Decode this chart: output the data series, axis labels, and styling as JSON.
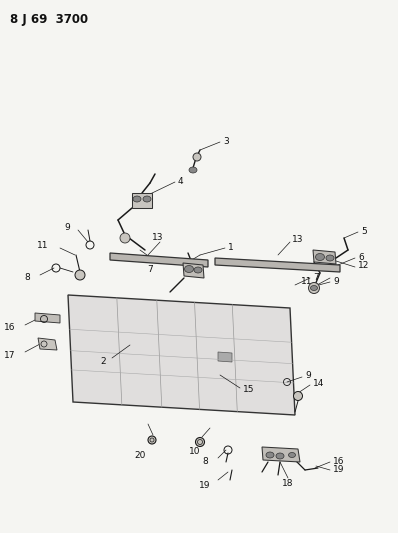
{
  "title": "8 J 69 3700",
  "bg": "#f5f5f2",
  "lc": "#1a1a1a",
  "fc_part": "#aaaaaa",
  "fc_light": "#cccccc",
  "fc_dark": "#888888"
}
